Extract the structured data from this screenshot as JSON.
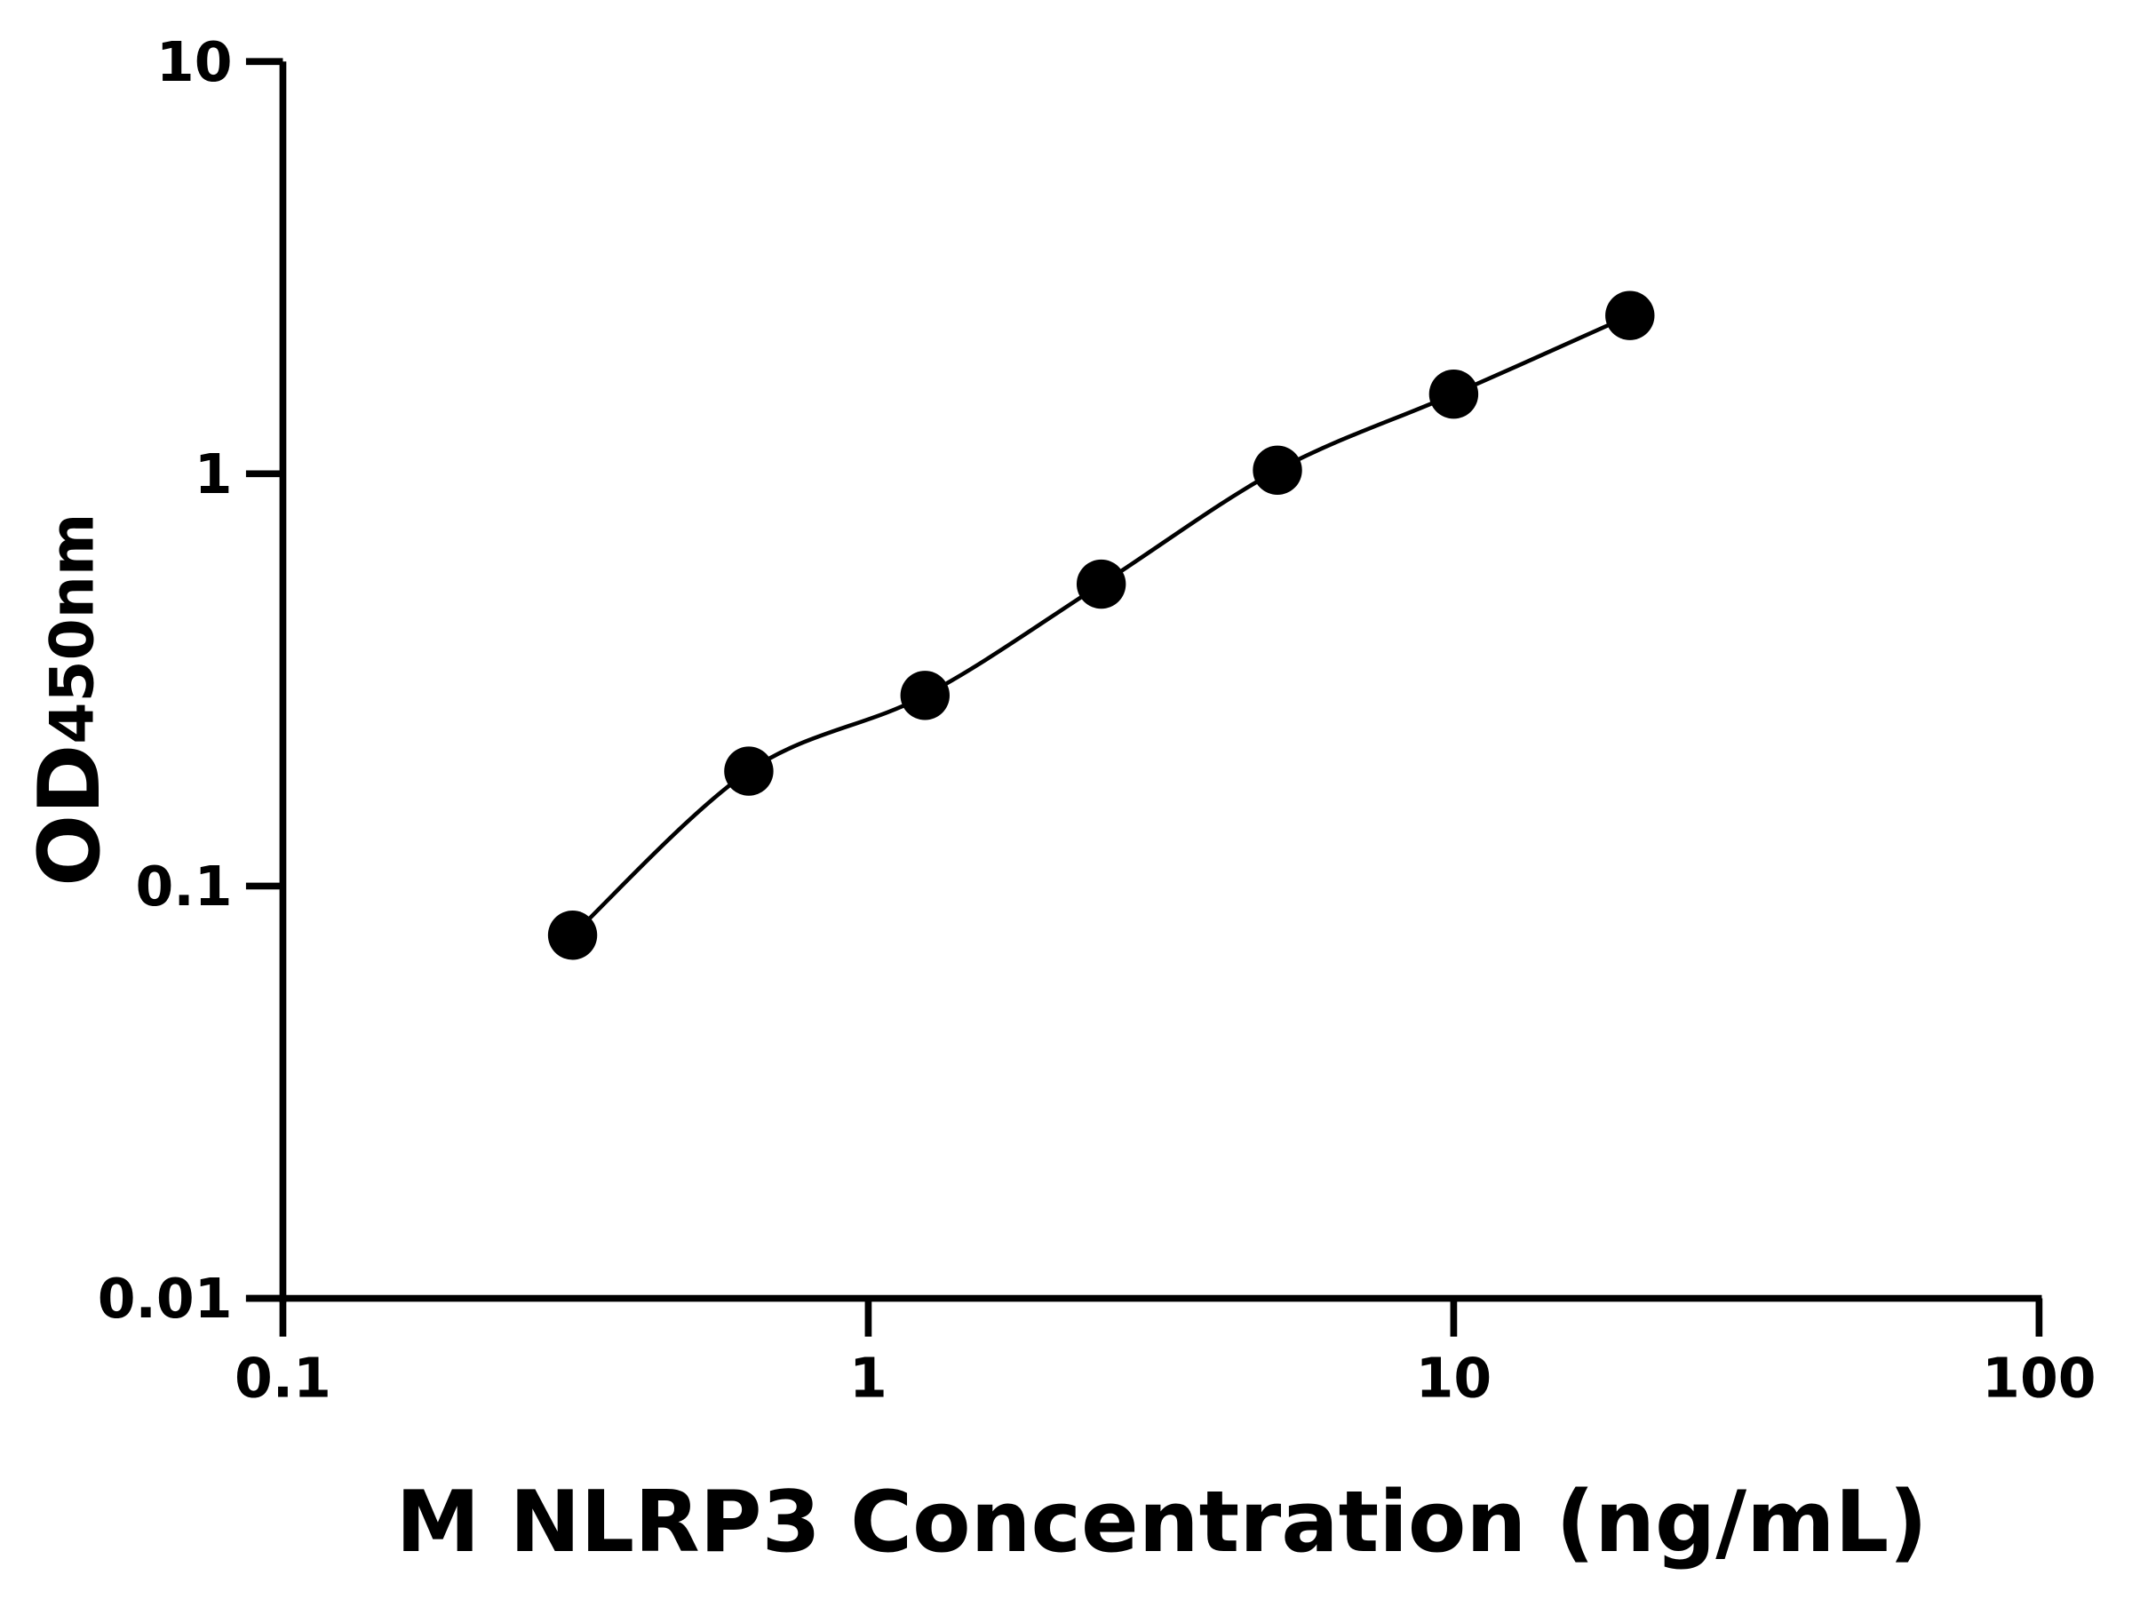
{
  "chart_data": {
    "type": "scatter",
    "title": "",
    "xlabel": "M NLRP3 Concentration (ng/mL)",
    "ylabel": {
      "main": "OD",
      "subscript": "450nm"
    },
    "x_scale": "log",
    "y_scale": "log",
    "xlim": [
      0.1,
      100
    ],
    "ylim": [
      0.01,
      10
    ],
    "x_ticks": [
      "0.1",
      "1",
      "10",
      "100"
    ],
    "y_ticks": [
      "0.01",
      "0.1",
      "1",
      "10"
    ],
    "grid": false,
    "fit_curve": true,
    "series": [
      {
        "x": [
          0.3125,
          0.625,
          1.25,
          2.5,
          5,
          10,
          20
        ],
        "y": [
          0.076,
          0.19,
          0.29,
          0.54,
          1.02,
          1.56,
          2.42
        ]
      }
    ],
    "colors": {
      "marker": "#000000",
      "line": "#000000",
      "axis": "#000000"
    }
  }
}
